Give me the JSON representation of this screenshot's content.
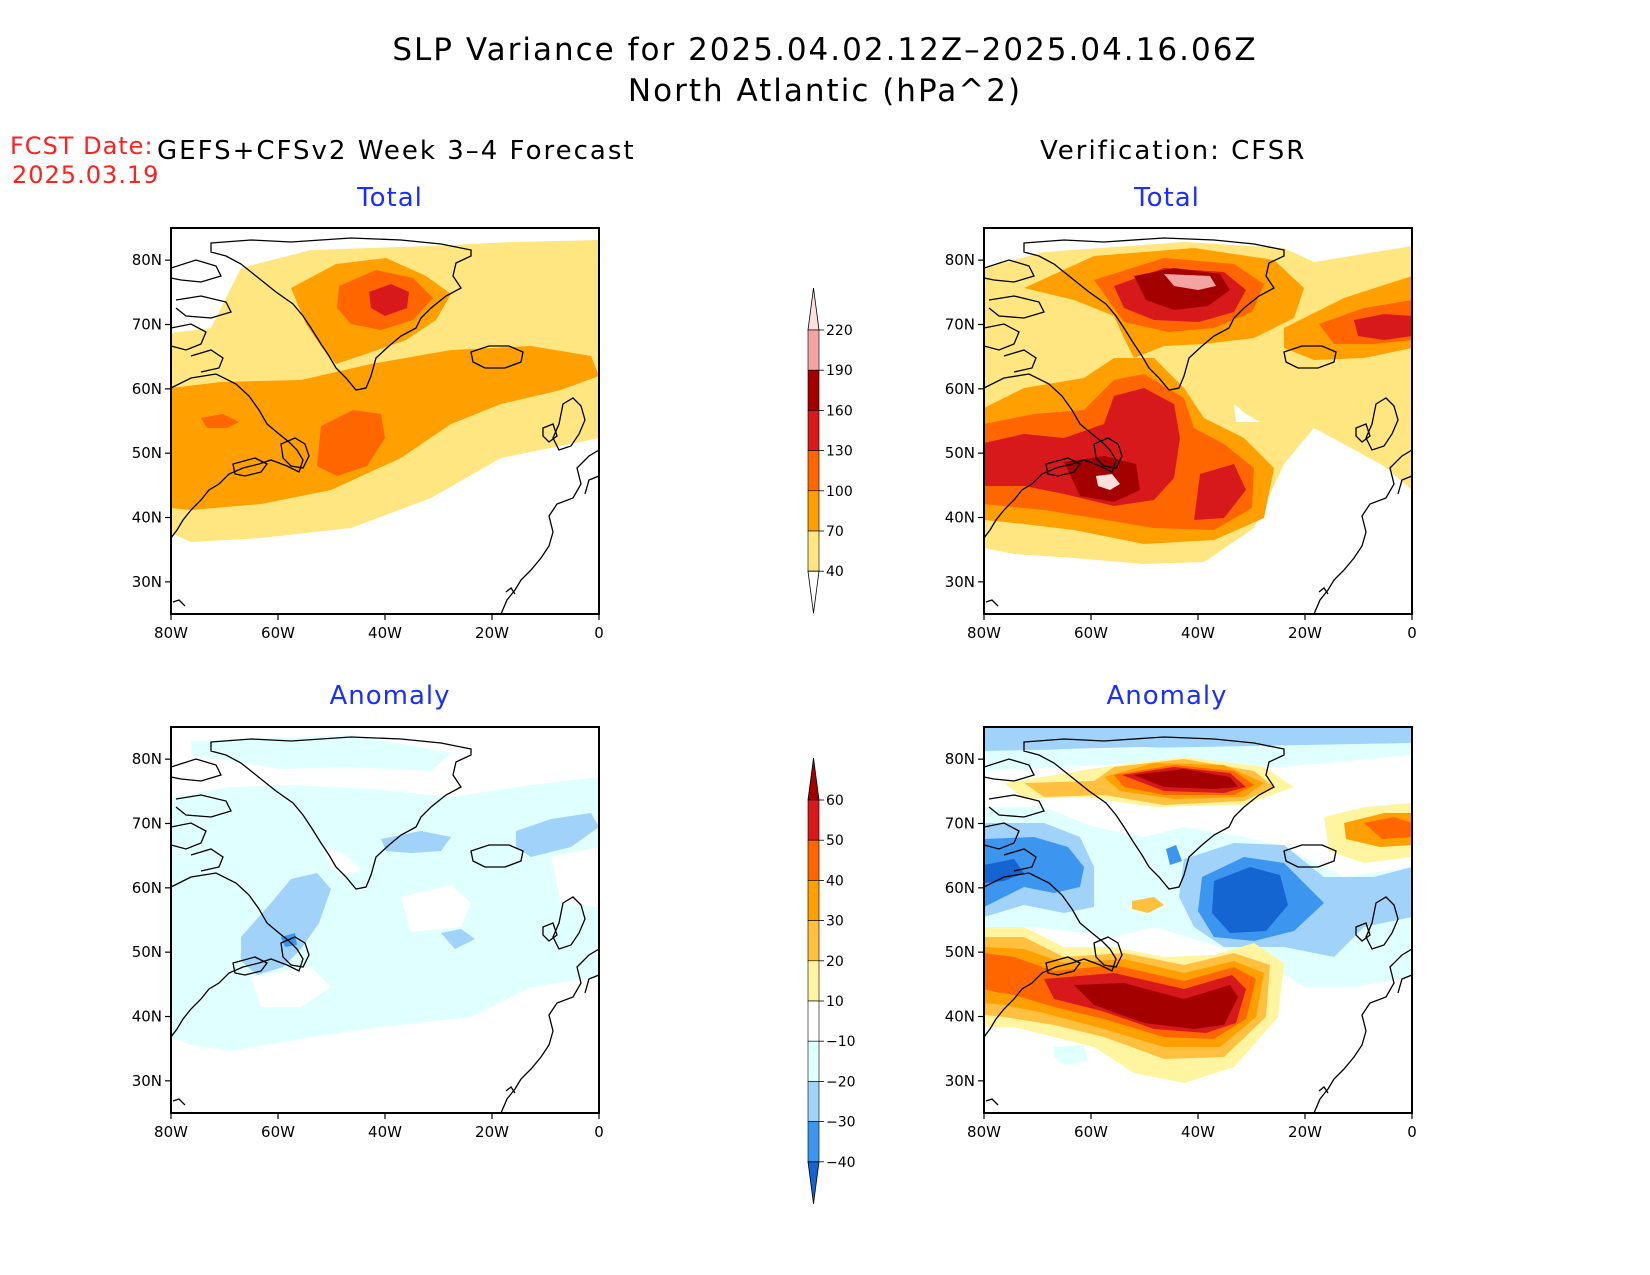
{
  "title": {
    "line1": "SLP Variance for 2025.04.02.12Z–2025.04.16.06Z",
    "line2": "North Atlantic (hPa^2)"
  },
  "fcst": {
    "label": "FCST Date:",
    "date": "2025.03.19"
  },
  "left_header": "GEFS+CFSv2 Week 3–4 Forecast",
  "right_header": "Verification: CFSR",
  "panels": {
    "fcst_total": {
      "title": "Total"
    },
    "verif_total": {
      "title": "Total"
    },
    "fcst_anom": {
      "title": "Anomaly"
    },
    "verif_anom": {
      "title": "Anomaly"
    }
  },
  "axes": {
    "lon_labels": [
      "80W",
      "60W",
      "40W",
      "20W",
      "0"
    ],
    "lat_labels": [
      "80N",
      "70N",
      "60N",
      "50N",
      "40N",
      "30N"
    ]
  },
  "colorbars": {
    "total": {
      "labels": [
        "220",
        "190",
        "160",
        "130",
        "100",
        "70",
        "40"
      ],
      "colors": [
        "#fde0dc",
        "#f4a3a3",
        "#a50000",
        "#d7191c",
        "#ff6600",
        "#ff9f00",
        "#ffe680"
      ]
    },
    "anomaly": {
      "labels": [
        "60",
        "50",
        "40",
        "30",
        "20",
        "10",
        "−10",
        "−20",
        "−30",
        "−40"
      ],
      "colors": [
        "#a50000",
        "#d7191c",
        "#ff6600",
        "#ff9f00",
        "#ffc040",
        "#fff5a0",
        "#ffffff",
        "#e0ffff",
        "#a0d2fa",
        "#3c96f0",
        "#1464d2"
      ]
    }
  }
}
